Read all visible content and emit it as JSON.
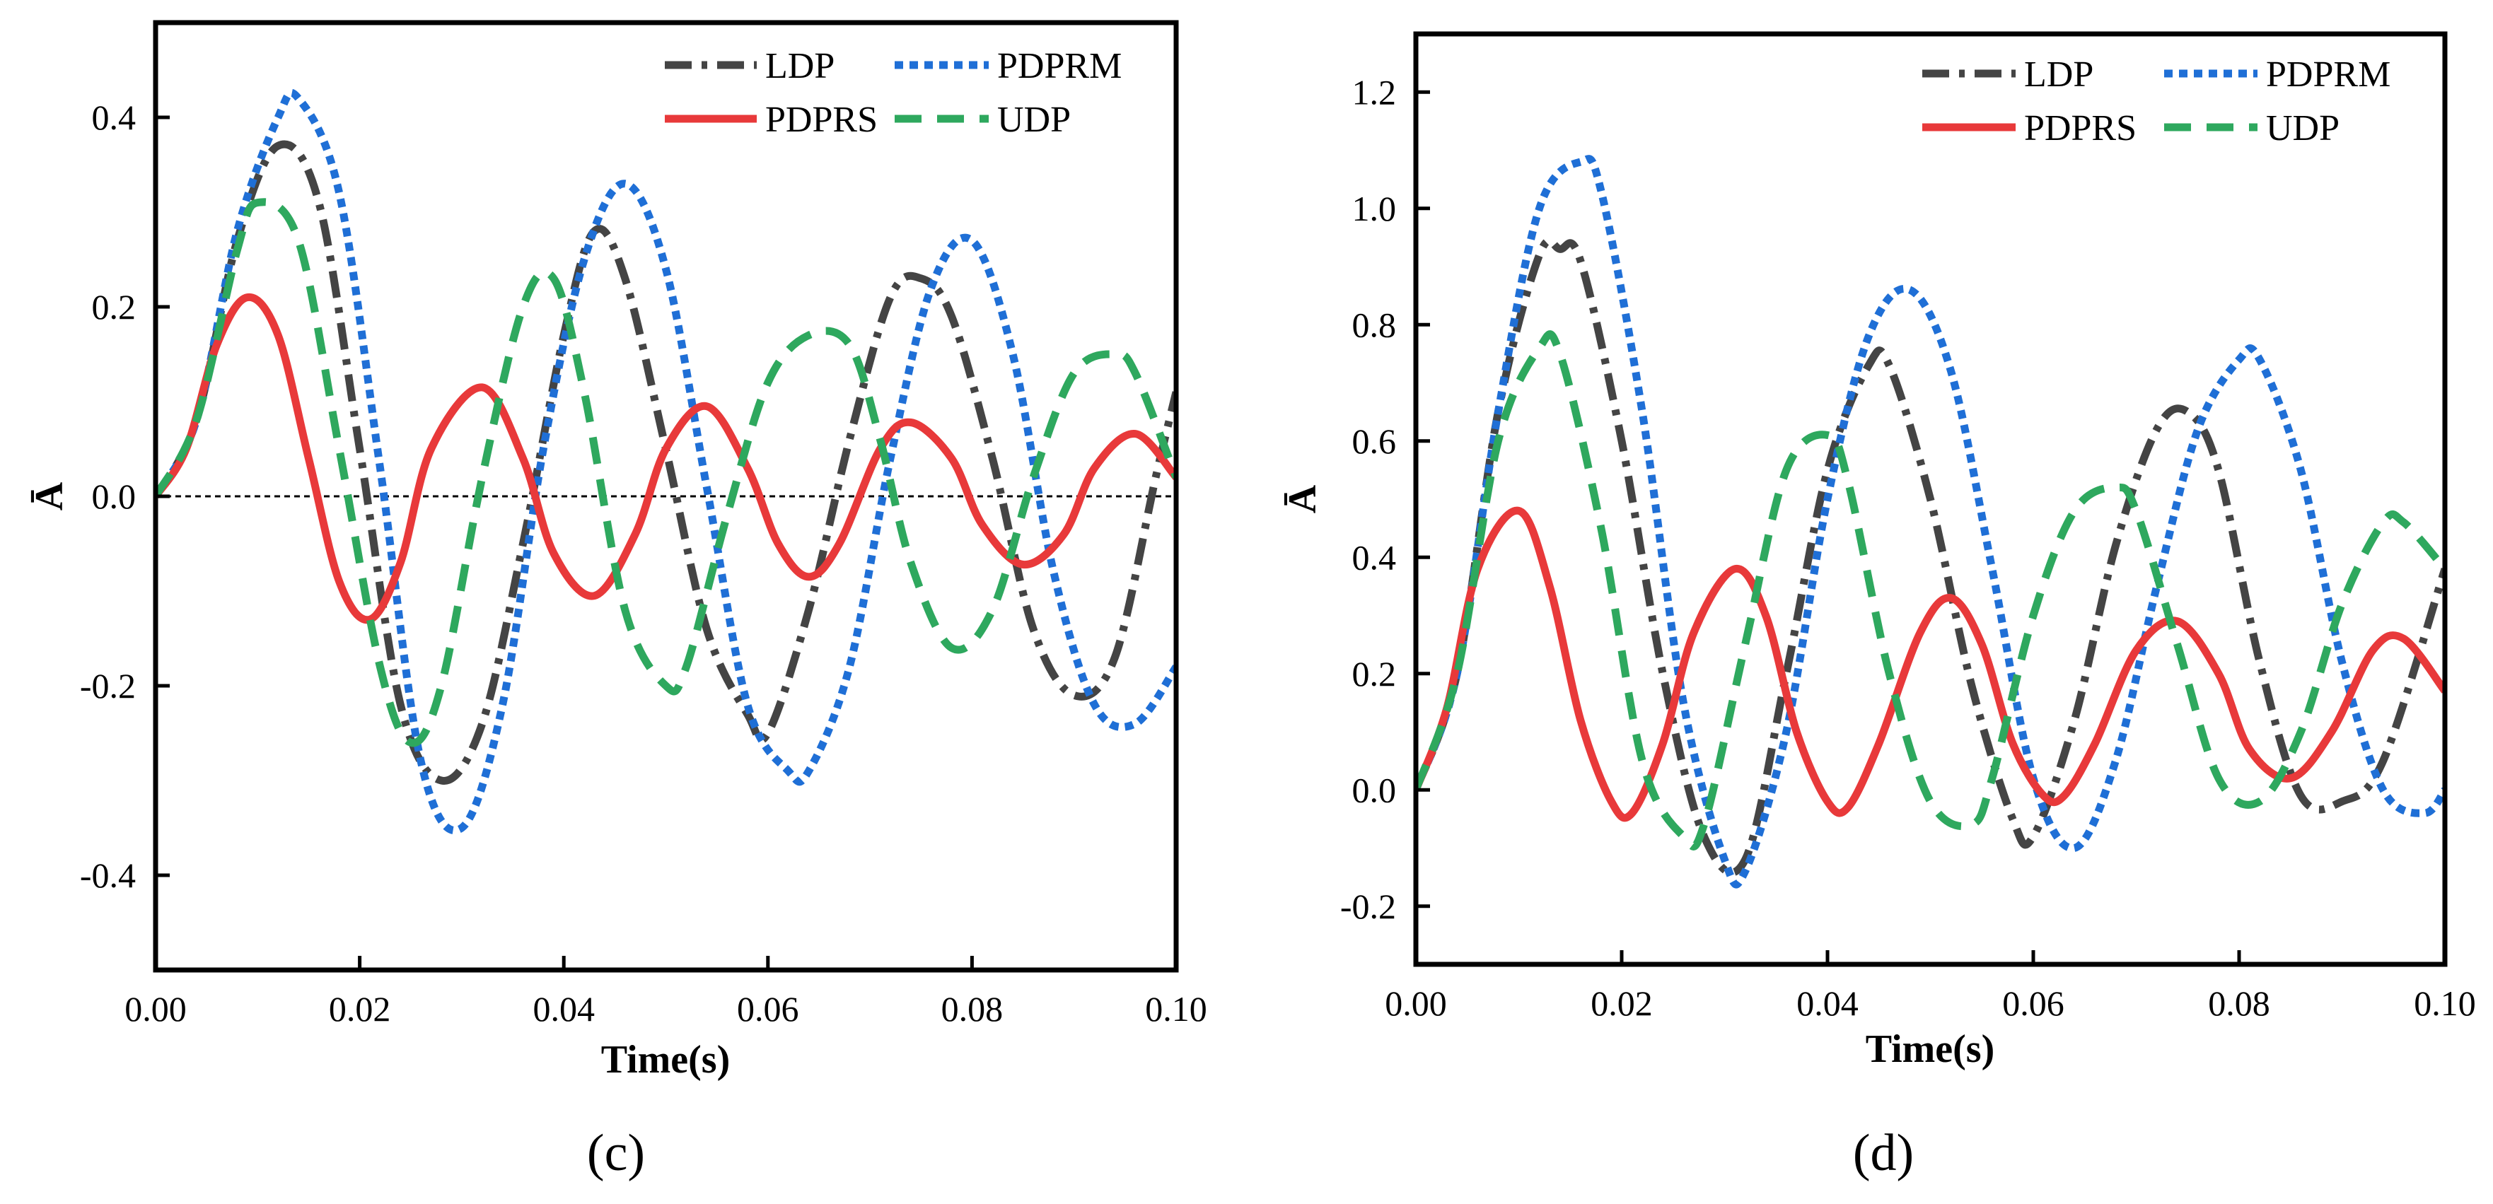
{
  "chart_data": [
    {
      "type": "line",
      "panel_label": "(c)",
      "xlabel": "Time(s)",
      "ylabel": "Ā",
      "xlim": [
        0.0,
        0.1
      ],
      "ylim": [
        -0.5,
        0.5
      ],
      "xticks": [
        0.0,
        0.02,
        0.04,
        0.06,
        0.08,
        0.1
      ],
      "xtick_labels": [
        "0.00",
        "0.02",
        "0.04",
        "0.06",
        "0.08",
        "0.10"
      ],
      "yticks": [
        -0.4,
        -0.2,
        0.0,
        0.2,
        0.4
      ],
      "ytick_labels": [
        "-0.4",
        "-0.2",
        "0.0",
        "0.2",
        "0.4"
      ],
      "zero_line": true,
      "legend_position": "top-right",
      "series": [
        {
          "name": "LDP",
          "color": "#444444",
          "dash": "dashdot",
          "x": [
            0,
            0.004,
            0.008,
            0.012,
            0.016,
            0.02,
            0.024,
            0.028,
            0.032,
            0.036,
            0.04,
            0.043,
            0.046,
            0.05,
            0.054,
            0.058,
            0.06,
            0.064,
            0.068,
            0.072,
            0.075,
            0.078,
            0.082,
            0.086,
            0.09,
            0.094,
            0.098,
            0.1
          ],
          "y": [
            0,
            0.08,
            0.27,
            0.37,
            0.31,
            0.05,
            -0.22,
            -0.3,
            -0.24,
            -0.05,
            0.17,
            0.28,
            0.23,
            0.05,
            -0.14,
            -0.23,
            -0.25,
            -0.12,
            0.06,
            0.21,
            0.23,
            0.19,
            0.04,
            -0.14,
            -0.21,
            -0.17,
            0.02,
            0.11
          ]
        },
        {
          "name": "PDPRM",
          "color": "#1f6fd6",
          "dash": "dot",
          "x": [
            0,
            0.004,
            0.008,
            0.012,
            0.014,
            0.018,
            0.022,
            0.026,
            0.03,
            0.034,
            0.038,
            0.042,
            0.046,
            0.05,
            0.054,
            0.058,
            0.062,
            0.064,
            0.068,
            0.072,
            0.076,
            0.08,
            0.084,
            0.088,
            0.092,
            0.096,
            0.1
          ],
          "y": [
            0,
            0.08,
            0.28,
            0.4,
            0.42,
            0.32,
            0.03,
            -0.28,
            -0.35,
            -0.22,
            0.05,
            0.25,
            0.33,
            0.24,
            0.01,
            -0.22,
            -0.29,
            -0.29,
            -0.18,
            0.04,
            0.22,
            0.27,
            0.15,
            -0.08,
            -0.22,
            -0.24,
            -0.18
          ]
        },
        {
          "name": "PDPRS",
          "color": "#e8393a",
          "dash": "solid",
          "x": [
            0,
            0.003,
            0.006,
            0.009,
            0.012,
            0.015,
            0.018,
            0.021,
            0.024,
            0.027,
            0.032,
            0.036,
            0.039,
            0.043,
            0.047,
            0.05,
            0.054,
            0.058,
            0.061,
            0.064,
            0.067,
            0.071,
            0.074,
            0.078,
            0.081,
            0.085,
            0.089,
            0.092,
            0.096,
            0.1
          ],
          "y": [
            0,
            0.05,
            0.16,
            0.21,
            0.17,
            0.04,
            -0.09,
            -0.13,
            -0.07,
            0.05,
            0.115,
            0.04,
            -0.06,
            -0.105,
            -0.04,
            0.05,
            0.095,
            0.03,
            -0.05,
            -0.085,
            -0.05,
            0.05,
            0.078,
            0.04,
            -0.03,
            -0.072,
            -0.04,
            0.03,
            0.066,
            0.02
          ]
        },
        {
          "name": "UDP",
          "color": "#2ea85e",
          "dash": "dash",
          "x": [
            0,
            0.004,
            0.008,
            0.01,
            0.014,
            0.018,
            0.022,
            0.025,
            0.028,
            0.032,
            0.036,
            0.039,
            0.042,
            0.046,
            0.05,
            0.052,
            0.056,
            0.06,
            0.064,
            0.068,
            0.071,
            0.074,
            0.078,
            0.082,
            0.086,
            0.09,
            0.094,
            0.096,
            0.1
          ],
          "y": [
            0,
            0.08,
            0.26,
            0.31,
            0.27,
            0.05,
            -0.18,
            -0.26,
            -0.2,
            0.02,
            0.2,
            0.23,
            0.11,
            -0.12,
            -0.2,
            -0.18,
            -0.02,
            0.12,
            0.17,
            0.16,
            0.06,
            -0.07,
            -0.16,
            -0.12,
            0.02,
            0.13,
            0.15,
            0.13,
            0.02
          ]
        }
      ]
    },
    {
      "type": "line",
      "panel_label": "(d)",
      "xlabel": "Time(s)",
      "ylabel": "Ā",
      "xlim": [
        0.0,
        0.1
      ],
      "ylim": [
        -0.3,
        1.3
      ],
      "xticks": [
        0.0,
        0.02,
        0.04,
        0.06,
        0.08,
        0.1
      ],
      "xtick_labels": [
        "0.00",
        "0.02",
        "0.04",
        "0.06",
        "0.08",
        "0.10"
      ],
      "yticks": [
        -0.2,
        0.0,
        0.2,
        0.4,
        0.6,
        0.8,
        1.0,
        1.2
      ],
      "ytick_labels": [
        "-0.2",
        "0.0",
        "0.2",
        "0.4",
        "0.6",
        "0.8",
        "1.0",
        "1.2"
      ],
      "zero_line": false,
      "legend_position": "top-right",
      "series": [
        {
          "name": "LDP",
          "color": "#444444",
          "dash": "dashdot",
          "x": [
            0,
            0.004,
            0.008,
            0.012,
            0.014,
            0.016,
            0.02,
            0.024,
            0.028,
            0.032,
            0.036,
            0.04,
            0.044,
            0.046,
            0.05,
            0.054,
            0.058,
            0.06,
            0.064,
            0.068,
            0.072,
            0.075,
            0.078,
            0.082,
            0.086,
            0.09,
            0.094,
            0.1
          ],
          "y": [
            0,
            0.2,
            0.65,
            0.92,
            0.93,
            0.91,
            0.6,
            0.2,
            -0.08,
            -0.12,
            0.2,
            0.55,
            0.73,
            0.73,
            0.5,
            0.18,
            -0.05,
            -0.08,
            0.12,
            0.42,
            0.62,
            0.65,
            0.55,
            0.22,
            -0.01,
            -0.02,
            0.05,
            0.38
          ]
        },
        {
          "name": "PDPRM",
          "color": "#1f6fd6",
          "dash": "dot",
          "x": [
            0,
            0.004,
            0.008,
            0.012,
            0.016,
            0.018,
            0.022,
            0.026,
            0.03,
            0.032,
            0.036,
            0.04,
            0.044,
            0.048,
            0.052,
            0.056,
            0.06,
            0.064,
            0.068,
            0.072,
            0.076,
            0.08,
            0.082,
            0.086,
            0.09,
            0.094,
            0.098,
            0.1
          ],
          "y": [
            0,
            0.2,
            0.65,
            1.0,
            1.08,
            1.03,
            0.65,
            0.15,
            -0.12,
            -0.14,
            0.1,
            0.5,
            0.78,
            0.86,
            0.72,
            0.38,
            0.02,
            -0.1,
            0.05,
            0.35,
            0.62,
            0.74,
            0.74,
            0.55,
            0.22,
            0.0,
            -0.04,
            0.0
          ]
        },
        {
          "name": "PDPRS",
          "color": "#e8393a",
          "dash": "solid",
          "x": [
            0,
            0.003,
            0.006,
            0.01,
            0.013,
            0.016,
            0.019,
            0.021,
            0.024,
            0.027,
            0.031,
            0.034,
            0.037,
            0.04,
            0.042,
            0.045,
            0.049,
            0.052,
            0.055,
            0.058,
            0.061,
            0.063,
            0.066,
            0.07,
            0.074,
            0.078,
            0.081,
            0.085,
            0.089,
            0.093,
            0.096,
            0.1
          ],
          "y": [
            0,
            0.14,
            0.38,
            0.48,
            0.35,
            0.12,
            -0.02,
            -0.04,
            0.08,
            0.27,
            0.38,
            0.3,
            0.1,
            -0.02,
            -0.03,
            0.08,
            0.27,
            0.33,
            0.25,
            0.08,
            -0.01,
            -0.01,
            0.08,
            0.24,
            0.29,
            0.2,
            0.07,
            0.02,
            0.1,
            0.24,
            0.26,
            0.17
          ]
        },
        {
          "name": "UDP",
          "color": "#2ea85e",
          "dash": "dash",
          "x": [
            0,
            0.004,
            0.008,
            0.012,
            0.014,
            0.018,
            0.022,
            0.026,
            0.028,
            0.032,
            0.036,
            0.04,
            0.042,
            0.046,
            0.05,
            0.054,
            0.056,
            0.06,
            0.064,
            0.068,
            0.07,
            0.074,
            0.078,
            0.082,
            0.086,
            0.09,
            0.094,
            0.096,
            0.1
          ],
          "y": [
            0,
            0.2,
            0.6,
            0.76,
            0.75,
            0.45,
            0.05,
            -0.08,
            -0.06,
            0.25,
            0.55,
            0.61,
            0.53,
            0.2,
            -0.02,
            -0.06,
            0.02,
            0.3,
            0.48,
            0.52,
            0.48,
            0.25,
            0.02,
            -0.02,
            0.1,
            0.32,
            0.46,
            0.46,
            0.38
          ]
        }
      ]
    }
  ]
}
